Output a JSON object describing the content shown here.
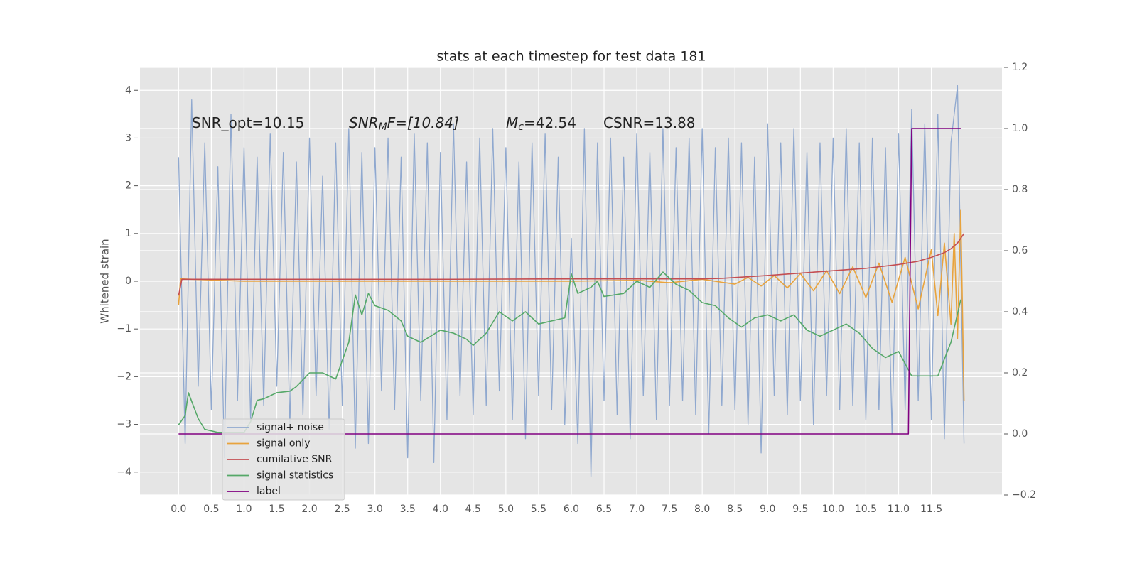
{
  "chart_data": {
    "type": "line",
    "title": "stats at each timestep for test data 181",
    "ylabel": "Whitened strain",
    "annotations": [
      {
        "parts": [
          "SNR_opt=10.15"
        ]
      },
      {
        "parts": [
          "SNR",
          "M",
          "F=[10.84]"
        ]
      },
      {
        "parts": [
          "M",
          "c",
          "=42.54"
        ]
      },
      {
        "parts": [
          "CSNR=13.88"
        ]
      }
    ],
    "xlim": [
      -0.59,
      12.58
    ],
    "ylim": [
      -4.48,
      4.48
    ],
    "y2lim": [
      -0.2,
      1.2
    ],
    "grid": true,
    "legend_loc": "lower left",
    "xticks": [
      {
        "value": 0,
        "label": "0.0"
      },
      0.5,
      {
        "value": 1,
        "label": "1.0"
      },
      1.5,
      {
        "value": 2,
        "label": "2.0"
      },
      2.5,
      {
        "value": 3,
        "label": "3.0"
      },
      3.5,
      {
        "value": 4,
        "label": "4.0"
      },
      4.5,
      {
        "value": 5,
        "label": "5.0"
      },
      5.5,
      {
        "value": 6,
        "label": "6.0"
      },
      6.5,
      {
        "value": 7,
        "label": "7.0"
      },
      7.5,
      {
        "value": 8,
        "label": "8.0"
      },
      8.5,
      {
        "value": 9,
        "label": "9.0"
      },
      9.5,
      {
        "value": 10,
        "label": "10.0"
      },
      10.5,
      {
        "value": 11,
        "label": "11.0"
      },
      11.5
    ],
    "yticks": [
      {
        "value": -4,
        "label": "−4"
      },
      {
        "value": -3,
        "label": "−3"
      },
      {
        "value": -2,
        "label": "−2"
      },
      {
        "value": -1,
        "label": "−1"
      },
      0,
      1,
      2,
      3,
      4
    ],
    "y2ticks": [
      {
        "value": -0.2,
        "label": "−0.2"
      },
      {
        "value": 0,
        "label": "0.0"
      },
      0.2,
      0.4,
      0.6,
      0.8,
      {
        "value": 1,
        "label": "1.0"
      },
      1.2
    ],
    "series": [
      {
        "name": "signal+ noise",
        "color": "#8fa8cf",
        "axis": "y",
        "x": [
          0,
          0.1,
          0.2,
          0.3,
          0.4,
          0.5,
          0.6,
          0.7,
          0.8,
          0.9,
          1,
          1.1,
          1.2,
          1.3,
          1.4,
          1.5,
          1.6,
          1.7,
          1.8,
          1.9,
          2,
          2.1,
          2.2,
          2.3,
          2.4,
          2.5,
          2.6,
          2.7,
          2.8,
          2.9,
          3,
          3.1,
          3.2,
          3.3,
          3.4,
          3.5,
          3.6,
          3.7,
          3.8,
          3.9,
          4,
          4.1,
          4.2,
          4.3,
          4.4,
          4.5,
          4.6,
          4.7,
          4.8,
          4.9,
          5,
          5.1,
          5.2,
          5.3,
          5.4,
          5.5,
          5.6,
          5.7,
          5.8,
          5.9,
          6,
          6.1,
          6.2,
          6.3,
          6.4,
          6.5,
          6.6,
          6.7,
          6.8,
          6.9,
          7,
          7.1,
          7.2,
          7.3,
          7.4,
          7.5,
          7.6,
          7.7,
          7.8,
          7.9,
          8,
          8.1,
          8.2,
          8.3,
          8.4,
          8.5,
          8.6,
          8.7,
          8.8,
          8.9,
          9,
          9.1,
          9.2,
          9.3,
          9.4,
          9.5,
          9.6,
          9.7,
          9.8,
          9.9,
          10,
          10.1,
          10.2,
          10.3,
          10.4,
          10.5,
          10.6,
          10.7,
          10.8,
          10.9,
          11,
          11.1,
          11.2,
          11.3,
          11.4,
          11.5,
          11.6,
          11.7,
          11.8,
          11.9,
          12
        ],
        "values": [
          2.6,
          -3.4,
          3.8,
          -2.2,
          2.9,
          -2.7,
          2.4,
          -3.7,
          3.5,
          -2.5,
          2.8,
          -2.9,
          2.6,
          -2.6,
          3.1,
          -2.2,
          2.7,
          -3.0,
          2.5,
          -2.8,
          3.0,
          -2.4,
          2.2,
          -3.1,
          2.9,
          -2.6,
          3.2,
          -3.5,
          2.7,
          -3.4,
          2.8,
          -2.3,
          3.0,
          -2.7,
          2.6,
          -3.7,
          3.1,
          -2.5,
          2.9,
          -3.8,
          2.7,
          -2.9,
          3.3,
          -2.4,
          2.5,
          -2.8,
          3.0,
          -2.6,
          3.2,
          -2.3,
          2.8,
          -2.9,
          2.5,
          -3.3,
          2.9,
          -2.4,
          3.1,
          -2.7,
          2.6,
          -3.0,
          0.9,
          -3.4,
          3.2,
          -4.1,
          2.9,
          -2.5,
          3.0,
          -2.8,
          2.6,
          -3.3,
          3.1,
          -2.4,
          2.7,
          -2.9,
          3.2,
          -2.6,
          2.8,
          -2.5,
          3.0,
          -2.8,
          3.2,
          -3.2,
          2.8,
          -2.6,
          3.0,
          -2.7,
          2.9,
          -3.0,
          2.6,
          -3.6,
          3.3,
          -2.4,
          2.9,
          -2.8,
          3.2,
          -2.5,
          2.7,
          -3.0,
          2.9,
          -2.4,
          3.0,
          -2.7,
          3.2,
          -2.6,
          2.9,
          -2.9,
          3.0,
          -2.7,
          2.8,
          -3.2,
          3.1,
          -2.7,
          3.6,
          -2.5,
          3.3,
          -2.9,
          3.5,
          -3.3,
          2.9,
          4.1,
          -3.4
        ]
      },
      {
        "name": "signal only",
        "color": "#e8a33d",
        "axis": "y",
        "x": [
          0,
          0.03,
          1,
          2,
          3,
          4,
          5,
          6,
          7,
          7.5,
          8,
          8.5,
          8.7,
          8.9,
          9.1,
          9.3,
          9.5,
          9.7,
          9.9,
          10.1,
          10.3,
          10.5,
          10.7,
          10.9,
          11.1,
          11.3,
          11.5,
          11.6,
          11.7,
          11.8,
          11.85,
          11.9,
          11.95,
          12
        ],
        "values": [
          -0.5,
          0.05,
          0,
          0,
          0,
          0,
          0,
          0,
          0.02,
          -0.03,
          0.04,
          -0.06,
          0.08,
          -0.1,
          0.12,
          -0.14,
          0.16,
          -0.2,
          0.22,
          -0.26,
          0.3,
          -0.34,
          0.38,
          -0.44,
          0.5,
          -0.58,
          0.66,
          -0.72,
          0.8,
          -0.9,
          1.0,
          -1.2,
          1.5,
          -2.5
        ]
      },
      {
        "name": "cumilative SNR",
        "color": "#c44e52",
        "axis": "y",
        "x": [
          0,
          0.05,
          2,
          4,
          6,
          8,
          8.3,
          9,
          9.5,
          10,
          10.5,
          11,
          11.3,
          11.5,
          11.7,
          11.8,
          11.9,
          12
        ],
        "values": [
          -0.3,
          0.04,
          0.04,
          0.04,
          0.05,
          0.05,
          0.06,
          0.12,
          0.17,
          0.22,
          0.27,
          0.35,
          0.42,
          0.5,
          0.6,
          0.68,
          0.8,
          1.0
        ]
      },
      {
        "name": "signal statistics",
        "color": "#55a868",
        "axis": "y2",
        "x": [
          0,
          0.1,
          0.15,
          0.3,
          0.4,
          0.6,
          1,
          1.1,
          1.2,
          1.3,
          1.5,
          1.7,
          1.8,
          2,
          2.2,
          2.4,
          2.6,
          2.7,
          2.8,
          2.9,
          3,
          3.2,
          3.4,
          3.5,
          3.7,
          4,
          4.2,
          4.4,
          4.5,
          4.7,
          4.9,
          5.1,
          5.3,
          5.5,
          5.7,
          5.9,
          6,
          6.1,
          6.3,
          6.4,
          6.5,
          6.8,
          7,
          7.2,
          7.4,
          7.6,
          7.8,
          8,
          8.2,
          8.4,
          8.6,
          8.8,
          9,
          9.2,
          9.4,
          9.6,
          9.8,
          10,
          10.2,
          10.4,
          10.6,
          10.8,
          11,
          11.2,
          11.4,
          11.6,
          11.8,
          11.95
        ],
        "values": [
          0.03,
          0.06,
          0.135,
          0.05,
          0.015,
          0.005,
          0.005,
          0.04,
          0.11,
          0.115,
          0.135,
          0.14,
          0.155,
          0.2,
          0.2,
          0.18,
          0.3,
          0.455,
          0.39,
          0.46,
          0.42,
          0.405,
          0.37,
          0.32,
          0.3,
          0.34,
          0.33,
          0.31,
          0.29,
          0.33,
          0.4,
          0.37,
          0.4,
          0.36,
          0.37,
          0.38,
          0.524,
          0.46,
          0.48,
          0.5,
          0.45,
          0.46,
          0.5,
          0.48,
          0.53,
          0.49,
          0.47,
          0.43,
          0.42,
          0.38,
          0.35,
          0.38,
          0.39,
          0.37,
          0.39,
          0.34,
          0.32,
          0.34,
          0.36,
          0.33,
          0.28,
          0.25,
          0.27,
          0.19,
          0.19,
          0.19,
          0.3,
          0.44
        ]
      },
      {
        "name": "label",
        "color": "#800080",
        "axis": "y2",
        "x": [
          0,
          11.15,
          11.2,
          11.95
        ],
        "values": [
          0,
          0,
          1,
          1
        ]
      }
    ]
  }
}
